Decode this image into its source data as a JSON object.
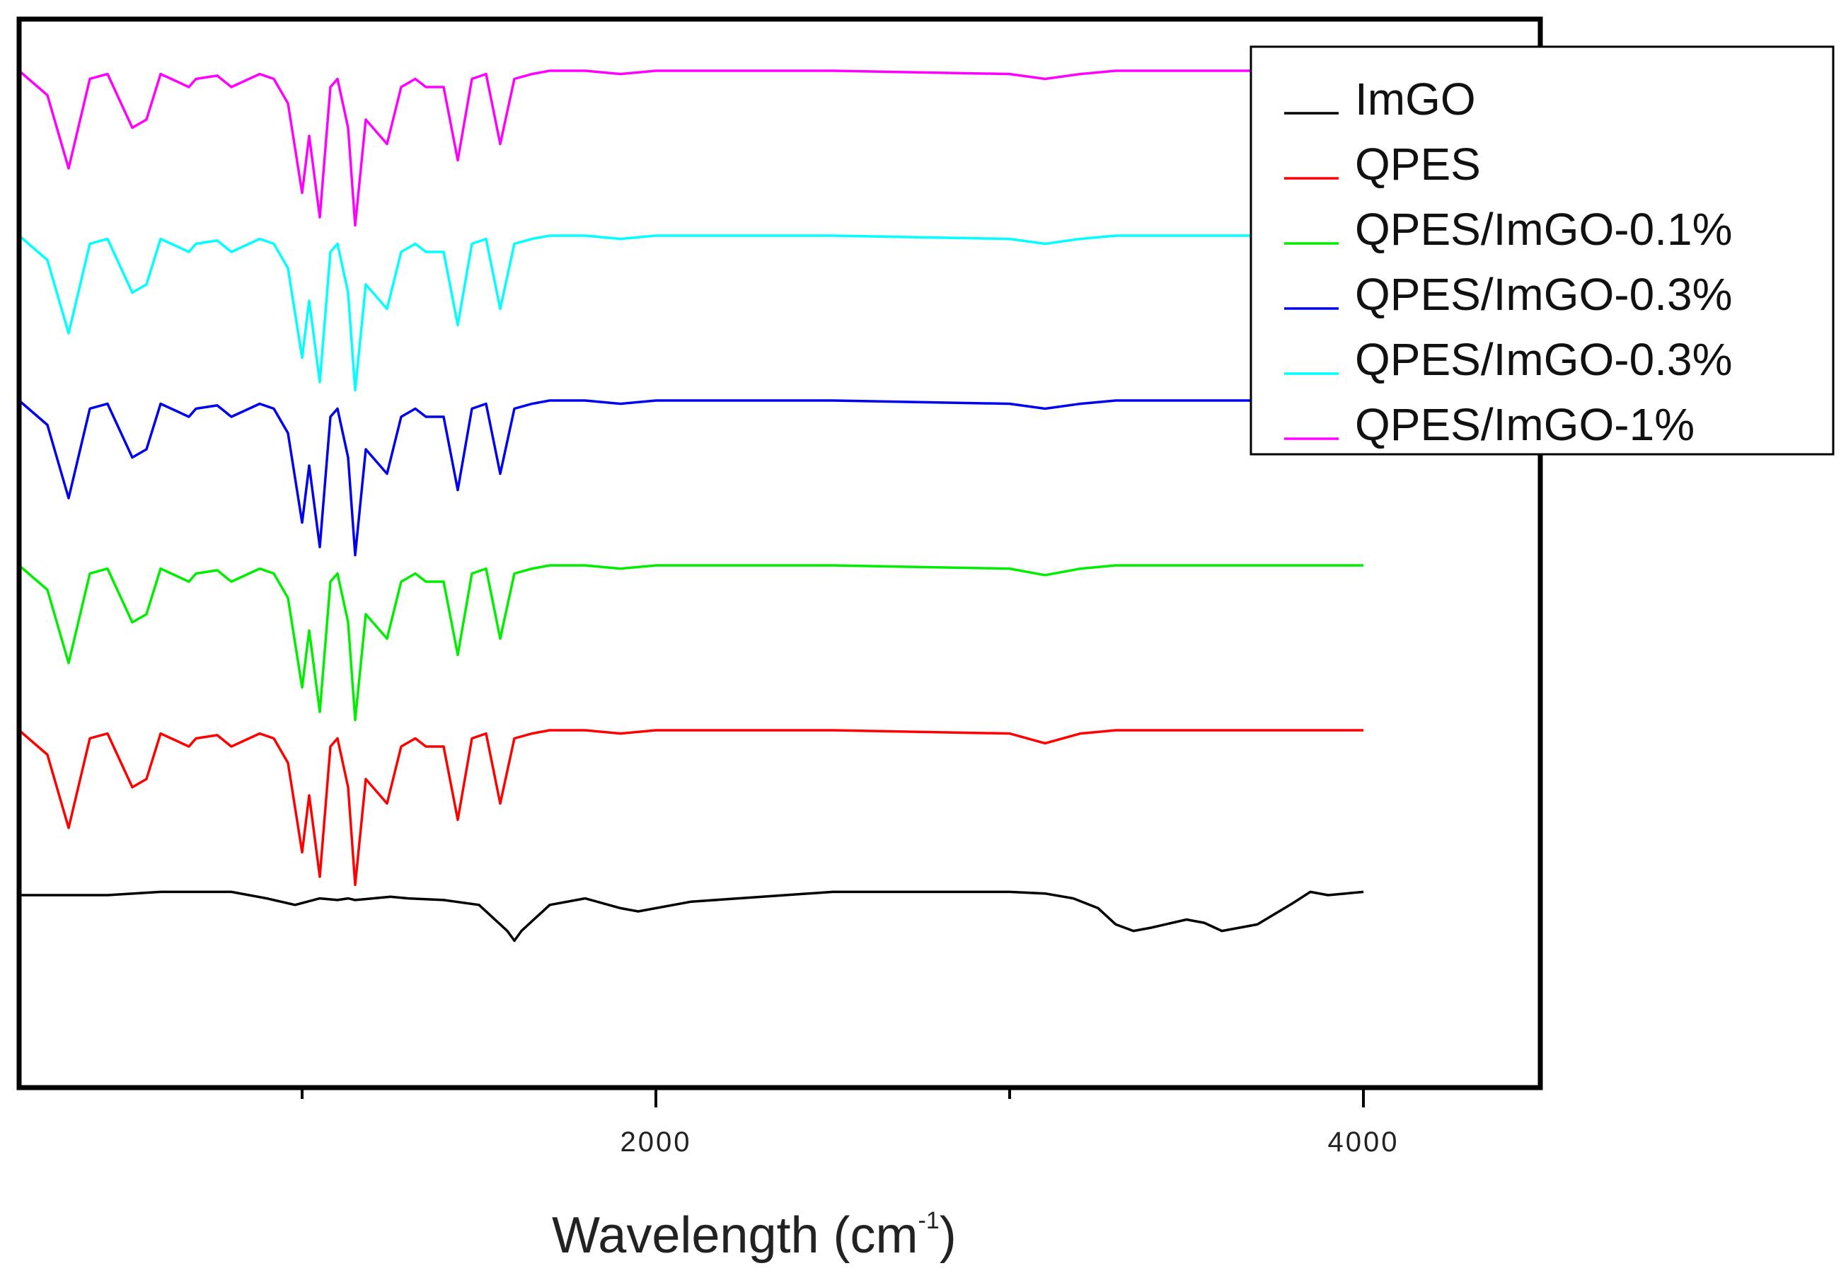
{
  "chart_data": {
    "type": "line",
    "title": "",
    "xlabel": "Wavelength (cm",
    "xlabel_superscript": "-1",
    "xlabel_suffix": ")",
    "ylabel": "",
    "xlim": [
      200,
      4500
    ],
    "x_ticks": [
      {
        "value": 2000,
        "label": "2000"
      },
      {
        "value": 4000,
        "label": "4000"
      }
    ],
    "x_minor_ticks": [
      1000,
      3000
    ],
    "grid": false,
    "legend_position": "top-right",
    "series": [
      {
        "name": "ImGO",
        "color": "#000000",
        "offset": 0,
        "x": [
          200,
          450,
          600,
          800,
          900,
          980,
          1050,
          1100,
          1130,
          1150,
          1200,
          1250,
          1300,
          1400,
          1500,
          1580,
          1600,
          1620,
          1700,
          1800,
          1900,
          1950,
          2100,
          2500,
          3000,
          3100,
          3180,
          3250,
          3300,
          3350,
          3400,
          3500,
          3550,
          3600,
          3700,
          3800,
          3850,
          3900,
          3950,
          4000
        ],
        "y": [
          0,
          0,
          0.02,
          0.02,
          -0.02,
          -0.06,
          -0.02,
          -0.03,
          -0.02,
          -0.03,
          -0.02,
          -0.01,
          -0.02,
          -0.03,
          -0.06,
          -0.22,
          -0.28,
          -0.22,
          -0.06,
          -0.02,
          -0.08,
          -0.1,
          -0.04,
          0.02,
          0.02,
          0.01,
          -0.02,
          -0.08,
          -0.18,
          -0.22,
          -0.2,
          -0.15,
          -0.17,
          -0.22,
          -0.18,
          -0.05,
          0.02,
          0.0,
          0.01,
          0.02
        ]
      },
      {
        "name": "QPES",
        "color": "#ff0000",
        "offset": 1,
        "x": [
          200,
          280,
          340,
          400,
          450,
          520,
          560,
          600,
          680,
          700,
          760,
          800,
          880,
          920,
          960,
          1000,
          1020,
          1050,
          1080,
          1100,
          1130,
          1150,
          1180,
          1240,
          1280,
          1320,
          1350,
          1400,
          1440,
          1480,
          1520,
          1560,
          1600,
          1650,
          1700,
          1800,
          1900,
          2000,
          2500,
          3000,
          3100,
          3200,
          3300,
          4000
        ],
        "y": [
          0,
          -0.15,
          -0.6,
          -0.05,
          -0.02,
          -0.35,
          -0.3,
          -0.02,
          -0.1,
          -0.05,
          -0.03,
          -0.1,
          -0.02,
          -0.05,
          -0.2,
          -0.75,
          -0.4,
          -0.9,
          -0.1,
          -0.05,
          -0.35,
          -0.95,
          -0.3,
          -0.45,
          -0.1,
          -0.05,
          -0.1,
          -0.1,
          -0.55,
          -0.05,
          -0.02,
          -0.45,
          -0.05,
          -0.02,
          0.0,
          0.0,
          -0.02,
          0.0,
          0.0,
          -0.02,
          -0.08,
          -0.02,
          0.0,
          0.0
        ]
      },
      {
        "name": "QPES/ImGO-0.1%",
        "color": "#00ee00",
        "offset": 2,
        "x": [
          200,
          280,
          340,
          400,
          450,
          520,
          560,
          600,
          680,
          700,
          760,
          800,
          880,
          920,
          960,
          1000,
          1020,
          1050,
          1080,
          1100,
          1130,
          1150,
          1180,
          1240,
          1280,
          1320,
          1350,
          1400,
          1440,
          1480,
          1520,
          1560,
          1600,
          1650,
          1700,
          1800,
          1900,
          2000,
          2500,
          3000,
          3100,
          3200,
          3300,
          4000
        ],
        "y": [
          0,
          -0.15,
          -0.6,
          -0.05,
          -0.02,
          -0.35,
          -0.3,
          -0.02,
          -0.1,
          -0.05,
          -0.03,
          -0.1,
          -0.02,
          -0.05,
          -0.2,
          -0.75,
          -0.4,
          -0.9,
          -0.1,
          -0.05,
          -0.35,
          -0.95,
          -0.3,
          -0.45,
          -0.1,
          -0.05,
          -0.1,
          -0.1,
          -0.55,
          -0.05,
          -0.02,
          -0.45,
          -0.05,
          -0.02,
          0.0,
          0.0,
          -0.02,
          0.0,
          0.0,
          -0.02,
          -0.06,
          -0.02,
          0.0,
          0.0
        ]
      },
      {
        "name": "QPES/ImGO-0.3%",
        "color": "#0000ee",
        "offset": 3,
        "x": [
          200,
          280,
          340,
          400,
          450,
          520,
          560,
          600,
          680,
          700,
          760,
          800,
          880,
          920,
          960,
          1000,
          1020,
          1050,
          1080,
          1100,
          1130,
          1150,
          1180,
          1240,
          1280,
          1320,
          1350,
          1400,
          1440,
          1480,
          1520,
          1560,
          1600,
          1650,
          1700,
          1800,
          1900,
          2000,
          2500,
          3000,
          3100,
          3200,
          3300,
          4000
        ],
        "y": [
          0,
          -0.15,
          -0.6,
          -0.05,
          -0.02,
          -0.35,
          -0.3,
          -0.02,
          -0.1,
          -0.05,
          -0.03,
          -0.1,
          -0.02,
          -0.05,
          -0.2,
          -0.75,
          -0.4,
          -0.9,
          -0.1,
          -0.05,
          -0.35,
          -0.95,
          -0.3,
          -0.45,
          -0.1,
          -0.05,
          -0.1,
          -0.1,
          -0.55,
          -0.05,
          -0.02,
          -0.45,
          -0.05,
          -0.02,
          0.0,
          0.0,
          -0.02,
          0.0,
          0.0,
          -0.02,
          -0.05,
          -0.02,
          0.0,
          0.0
        ]
      },
      {
        "name": "QPES/ImGO-0.3%",
        "color": "#00ffff",
        "offset": 4,
        "x": [
          200,
          280,
          340,
          400,
          450,
          520,
          560,
          600,
          680,
          700,
          760,
          800,
          880,
          920,
          960,
          1000,
          1020,
          1050,
          1080,
          1100,
          1130,
          1150,
          1180,
          1240,
          1280,
          1320,
          1350,
          1400,
          1440,
          1480,
          1520,
          1560,
          1600,
          1650,
          1700,
          1800,
          1900,
          2000,
          2500,
          3000,
          3100,
          3200,
          3300,
          4000
        ],
        "y": [
          0,
          -0.15,
          -0.6,
          -0.05,
          -0.02,
          -0.35,
          -0.3,
          -0.02,
          -0.1,
          -0.05,
          -0.03,
          -0.1,
          -0.02,
          -0.05,
          -0.2,
          -0.75,
          -0.4,
          -0.9,
          -0.1,
          -0.05,
          -0.35,
          -0.95,
          -0.3,
          -0.45,
          -0.1,
          -0.05,
          -0.1,
          -0.1,
          -0.55,
          -0.05,
          -0.02,
          -0.45,
          -0.05,
          -0.02,
          0.0,
          0.0,
          -0.02,
          0.0,
          0.0,
          -0.02,
          -0.05,
          -0.02,
          0.0,
          0.0
        ]
      },
      {
        "name": "QPES/ImGO-1%",
        "color": "#ff00ff",
        "offset": 5,
        "x": [
          200,
          280,
          340,
          400,
          450,
          520,
          560,
          600,
          680,
          700,
          760,
          800,
          880,
          920,
          960,
          1000,
          1020,
          1050,
          1080,
          1100,
          1130,
          1150,
          1180,
          1240,
          1280,
          1320,
          1350,
          1400,
          1440,
          1480,
          1520,
          1560,
          1600,
          1650,
          1700,
          1800,
          1900,
          2000,
          2500,
          3000,
          3100,
          3200,
          3300,
          4000
        ],
        "y": [
          0,
          -0.15,
          -0.6,
          -0.05,
          -0.02,
          -0.35,
          -0.3,
          -0.02,
          -0.1,
          -0.05,
          -0.03,
          -0.1,
          -0.02,
          -0.05,
          -0.2,
          -0.75,
          -0.4,
          -0.9,
          -0.1,
          -0.05,
          -0.35,
          -0.95,
          -0.3,
          -0.45,
          -0.1,
          -0.05,
          -0.1,
          -0.1,
          -0.55,
          -0.05,
          -0.02,
          -0.45,
          -0.05,
          -0.02,
          0.0,
          0.0,
          -0.02,
          0.0,
          0.0,
          -0.02,
          -0.05,
          -0.02,
          0.0,
          0.0
        ]
      }
    ]
  }
}
